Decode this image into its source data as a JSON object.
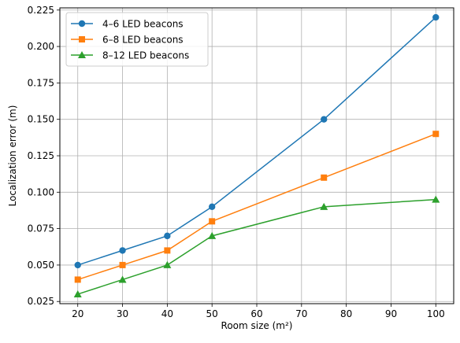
{
  "chart_data": {
    "type": "line",
    "title": "",
    "xlabel": "Room size (m²)",
    "ylabel": "Localization error (m)",
    "xlim": [
      16,
      104
    ],
    "ylim": [
      0.0235,
      0.2265
    ],
    "x_ticks": [
      20,
      30,
      40,
      50,
      60,
      70,
      80,
      90,
      100
    ],
    "y_ticks": [
      0.025,
      0.05,
      0.075,
      0.1,
      0.125,
      0.15,
      0.175,
      0.2,
      0.225
    ],
    "y_tick_labels": [
      "0.025",
      "0.050",
      "0.075",
      "0.100",
      "0.125",
      "0.150",
      "0.175",
      "0.200",
      "0.225"
    ],
    "grid": true,
    "legend_position": "top-left",
    "x": [
      20,
      30,
      40,
      50,
      75,
      100
    ],
    "series": [
      {
        "name": "4–6 LED beacons",
        "color": "#1f77b4",
        "marker": "circle",
        "values": [
          0.05,
          0.06,
          0.07,
          0.09,
          0.15,
          0.22
        ]
      },
      {
        "name": "6–8 LED beacons",
        "color": "#ff7f0e",
        "marker": "square",
        "values": [
          0.04,
          0.05,
          0.06,
          0.08,
          0.11,
          0.14
        ]
      },
      {
        "name": "8–12 LED beacons",
        "color": "#2ca02c",
        "marker": "triangle",
        "values": [
          0.03,
          0.04,
          0.05,
          0.07,
          0.09,
          0.095
        ]
      }
    ]
  }
}
